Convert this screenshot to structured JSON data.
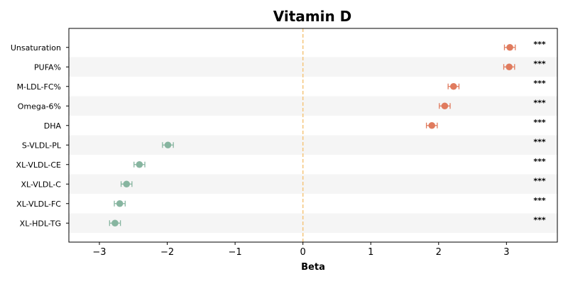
{
  "chart_data": {
    "type": "scatter",
    "title": "Vitamin D",
    "xlabel": "Beta",
    "ylabel": "",
    "xlim": [
      -3.45,
      3.75
    ],
    "xticks": [
      -3,
      -2,
      -1,
      0,
      1,
      2,
      3
    ],
    "xtick_labels": [
      "−3",
      "−2",
      "−1",
      "0",
      "1",
      "2",
      "3"
    ],
    "reference_line": 0,
    "reference_line_color": "#f5c57a",
    "band_color": "#f5f5f5",
    "positive_color": "#e07b5e",
    "negative_color": "#87b5a0",
    "points": [
      {
        "label": "Unsaturation",
        "beta": 3.05,
        "lower": 2.97,
        "upper": 3.13,
        "sig": "***"
      },
      {
        "label": "PUFA%",
        "beta": 3.04,
        "lower": 2.96,
        "upper": 3.12,
        "sig": "***"
      },
      {
        "label": "M-LDL-FC%",
        "beta": 2.22,
        "lower": 2.14,
        "upper": 2.3,
        "sig": "***"
      },
      {
        "label": "Omega-6%",
        "beta": 2.09,
        "lower": 2.01,
        "upper": 2.17,
        "sig": "***"
      },
      {
        "label": "DHA",
        "beta": 1.9,
        "lower": 1.82,
        "upper": 1.98,
        "sig": "***"
      },
      {
        "label": "S-VLDL-PL",
        "beta": -1.99,
        "lower": -2.07,
        "upper": -1.91,
        "sig": "***"
      },
      {
        "label": "XL-VLDL-CE",
        "beta": -2.41,
        "lower": -2.49,
        "upper": -2.33,
        "sig": "***"
      },
      {
        "label": "XL-VLDL-C",
        "beta": -2.6,
        "lower": -2.68,
        "upper": -2.52,
        "sig": "***"
      },
      {
        "label": "XL-VLDL-FC",
        "beta": -2.7,
        "lower": -2.78,
        "upper": -2.62,
        "sig": "***"
      },
      {
        "label": "XL-HDL-TG",
        "beta": -2.77,
        "lower": -2.85,
        "upper": -2.69,
        "sig": "***"
      }
    ]
  }
}
